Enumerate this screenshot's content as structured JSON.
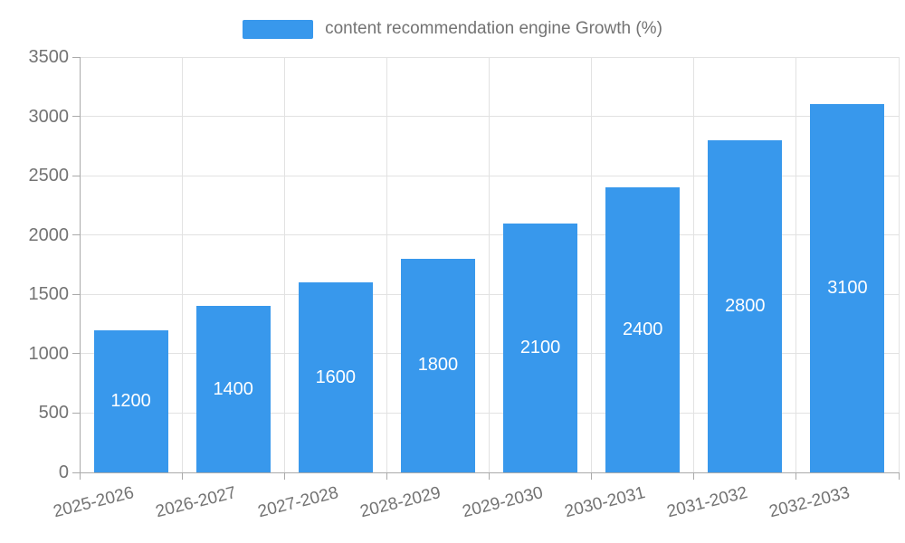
{
  "legend": {
    "label": "content recommendation engine Growth (%)"
  },
  "chart_data": {
    "type": "bar",
    "title": "content recommendation engine Growth (%)",
    "series_name": "content recommendation engine Growth (%)",
    "categories": [
      "2025-2026",
      "2026-2027",
      "2027-2028",
      "2028-2029",
      "2029-2030",
      "2030-2031",
      "2031-2032",
      "2032-2033"
    ],
    "values": [
      1200,
      1400,
      1600,
      1800,
      2100,
      2400,
      2800,
      3100
    ],
    "xlabel": "",
    "ylabel": "",
    "ylim": [
      0,
      3500
    ],
    "y_ticks": [
      0,
      500,
      1000,
      1500,
      2000,
      2500,
      3000,
      3500
    ],
    "grid": true,
    "legend_position": "top-center",
    "value_labels": "inside-center-white",
    "colors": {
      "bar": "#3898ec",
      "axis_text": "#737373",
      "axis_line": "#aaaaaa",
      "grid_line": "#e2e2e2",
      "value_label": "#ffffff",
      "background": "#ffffff"
    }
  }
}
